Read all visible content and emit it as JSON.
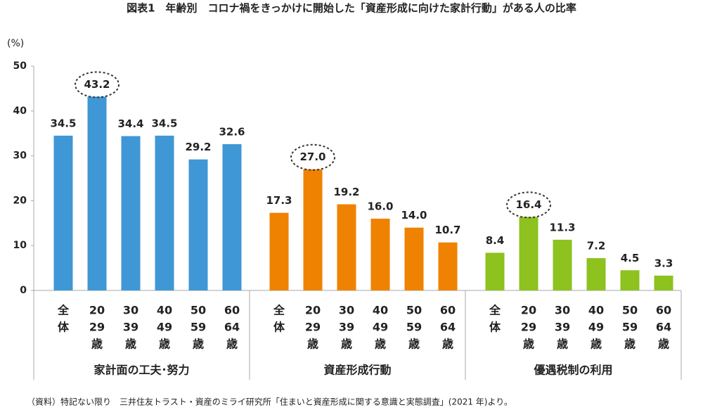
{
  "chart_data": {
    "type": "bar",
    "title": "図表1　年齢別　コロナ禍をきっかけに開始した「資産形成に向けた家計行動」がある人の比率",
    "y_label": "(%)",
    "ylim": [
      0,
      50
    ],
    "yticks": [
      0,
      10,
      20,
      30,
      40,
      50
    ],
    "grid": false,
    "categories": [
      [
        "全",
        "体"
      ],
      [
        "20",
        "29",
        "歳"
      ],
      [
        "30",
        "39",
        "歳"
      ],
      [
        "40",
        "49",
        "歳"
      ],
      [
        "50",
        "59",
        "歳"
      ],
      [
        "60",
        "64",
        "歳"
      ]
    ],
    "groups": [
      {
        "name": "家計面の工夫･努力",
        "color": "#3f97d6",
        "highlight_index": 1,
        "values": [
          34.5,
          43.2,
          34.4,
          34.5,
          29.2,
          32.6
        ],
        "value_labels": [
          "34.5",
          "43.2",
          "34.4",
          "34.5",
          "29.2",
          "32.6"
        ]
      },
      {
        "name": "資産形成行動",
        "color": "#ef8200",
        "highlight_index": 1,
        "values": [
          17.3,
          27,
          19.2,
          16,
          14,
          10.7
        ],
        "value_labels": [
          "17.3",
          "27.0",
          "19.2",
          "16.0",
          "14.0",
          "10.7"
        ]
      },
      {
        "name": "優遇税制の利用",
        "color": "#8dc21f",
        "highlight_index": 1,
        "values": [
          8.4,
          16.4,
          11.3,
          7.2,
          4.5,
          3.3
        ],
        "value_labels": [
          "8.4",
          "16.4",
          "11.3",
          "7.2",
          "4.5",
          "3.3"
        ]
      }
    ],
    "source": "（資料）特記ない限り　三井住友トラスト・資産のミライ研究所「住まいと資産形成に関する意識と実態調査」(2021 年)より。"
  }
}
